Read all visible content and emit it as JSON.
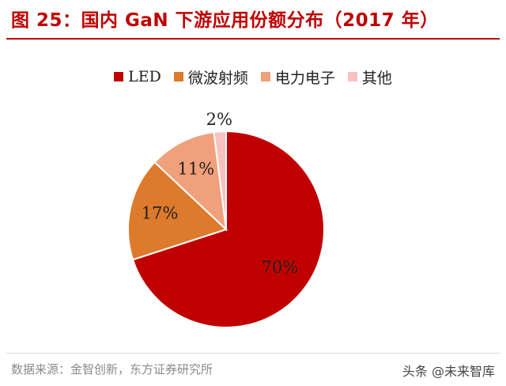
{
  "page": {
    "title": "图 25：国内 GaN 下游应用份额分布（2017 年）",
    "source": "数据来源：金智创新，东方证券研究所",
    "watermark": "头条 @未来智库"
  },
  "chart_data": {
    "type": "pie",
    "title": "图 25：国内 GaN 下游应用份额分布（2017 年）",
    "categories": [
      "LED",
      "微波射频",
      "电力电子",
      "其他"
    ],
    "values": [
      70,
      17,
      11,
      2
    ],
    "labels": [
      "70%",
      "17%",
      "11%",
      "2%"
    ],
    "colors": [
      "#c00000",
      "#dd7a2b",
      "#f0a07b",
      "#f7c3c0"
    ],
    "legend": "top",
    "start": "12 o'clock",
    "direction": "clockwise"
  }
}
